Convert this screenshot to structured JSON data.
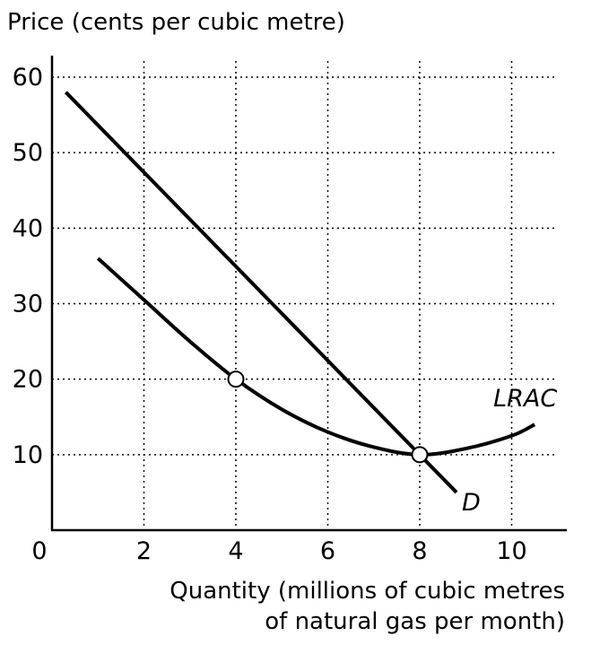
{
  "chart_data": {
    "type": "line",
    "ylabel": "Price (cents per cubic metre)",
    "xlabel_lines": [
      "Quantity (millions of cubic metres",
      "of natural gas per month)"
    ],
    "xlim": [
      0,
      11.2
    ],
    "ylim": [
      0,
      60
    ],
    "x_ticks": [
      "0",
      "2",
      "4",
      "6",
      "8",
      "10"
    ],
    "y_ticks": [
      "10",
      "20",
      "30",
      "40",
      "50",
      "60"
    ],
    "grid": true,
    "series": [
      {
        "name": "D",
        "x": [
          0.3,
          8.8
        ],
        "y": [
          58,
          5
        ]
      },
      {
        "name": "LRAC",
        "x": [
          1.0,
          2.0,
          3.0,
          4.0,
          5.0,
          6.0,
          7.0,
          8.0,
          9.0,
          10.0,
          10.5
        ],
        "y": [
          36,
          30.5,
          25,
          20,
          16,
          13,
          11,
          10,
          10.8,
          12.5,
          14
        ]
      }
    ],
    "points": [
      {
        "x": 4,
        "y": 20
      },
      {
        "x": 8,
        "y": 10
      }
    ]
  }
}
